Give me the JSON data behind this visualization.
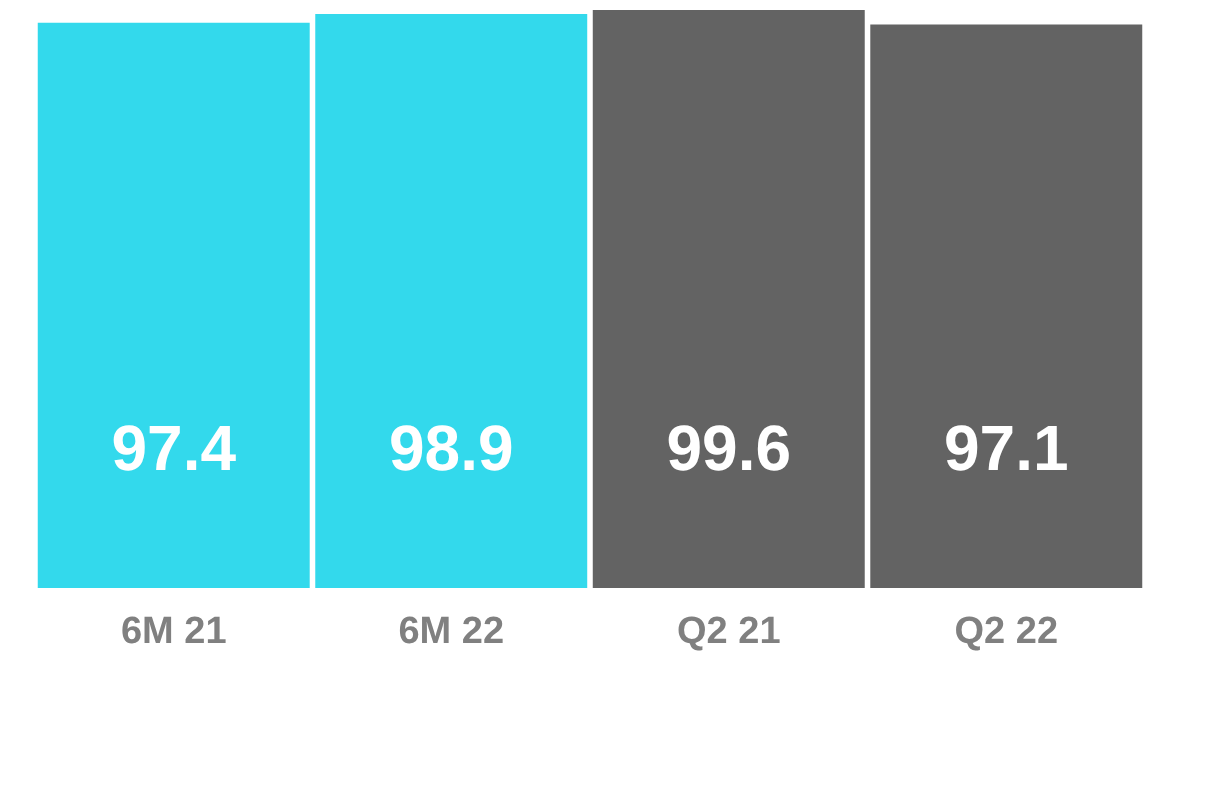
{
  "chart_data": {
    "type": "bar",
    "categories": [
      "6M 21",
      "6M 22",
      "Q2 21",
      "Q2 22"
    ],
    "values": [
      97.4,
      98.9,
      99.6,
      97.1
    ],
    "colors": [
      "#33d9ec",
      "#33d9ec",
      "#636363",
      "#636363"
    ],
    "data_labels": true
  }
}
